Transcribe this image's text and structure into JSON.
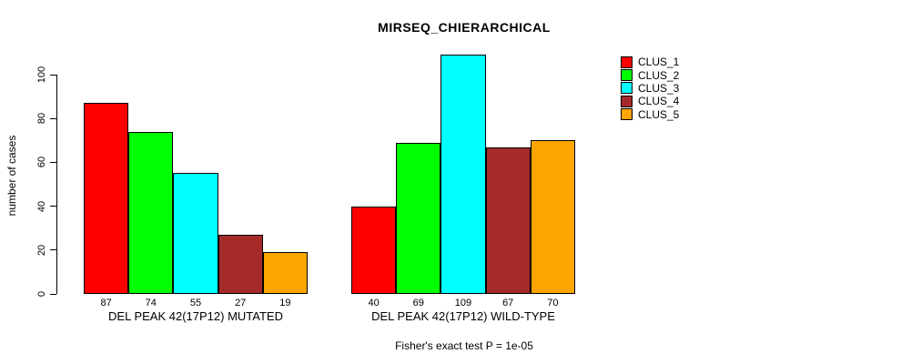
{
  "chart_data": {
    "type": "bar",
    "title": "MIRSEQ_CHIERARCHICAL",
    "subtitle": "Fisher's exact test P = 1e-05",
    "xlabel": "",
    "ylabel": "number of cases",
    "ylim": [
      0,
      100
    ],
    "yticks": [
      0,
      20,
      40,
      60,
      80,
      100
    ],
    "grid": false,
    "legend_position": "right",
    "bar_outline_color": "#000000",
    "series": [
      {
        "name": "CLUS_1",
        "color": "#FF0000"
      },
      {
        "name": "CLUS_2",
        "color": "#00FF00"
      },
      {
        "name": "CLUS_3",
        "color": "#00FFFF"
      },
      {
        "name": "CLUS_4",
        "color": "#A52A2A"
      },
      {
        "name": "CLUS_5",
        "color": "#FFA500"
      }
    ],
    "groups": [
      {
        "label": "DEL PEAK 42(17P12) MUTATED",
        "values": [
          87,
          74,
          55,
          27,
          19
        ]
      },
      {
        "label": "DEL PEAK 42(17P12) WILD-TYPE",
        "values": [
          40,
          69,
          109,
          67,
          70
        ]
      }
    ]
  }
}
